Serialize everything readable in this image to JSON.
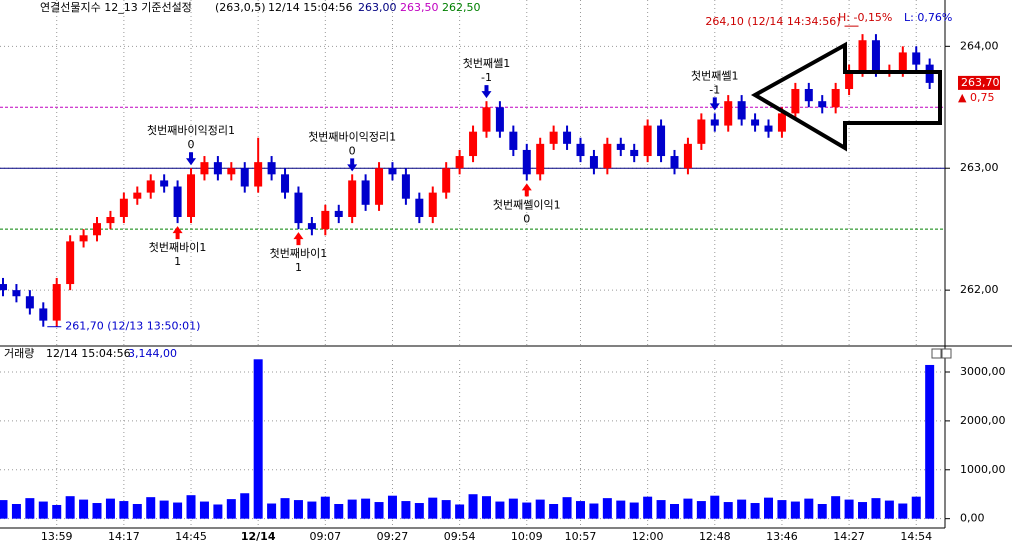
{
  "chart_data": [
    {
      "type": "candlestick",
      "title": "연결선물지수 12_13 기준선설정",
      "params": "(263,0,5)",
      "timestamp": "12/14 15:04:56",
      "ref_lines": [
        {
          "value": 263,
          "label": "263,00",
          "color": "#000080",
          "style": "solid"
        },
        {
          "value": 263.5,
          "label": "263,50",
          "color": "#c000c0",
          "style": "dashed"
        },
        {
          "value": 262.5,
          "label": "262,50",
          "color": "#008000",
          "style": "dashed"
        }
      ],
      "categories": [
        null,
        null,
        null,
        null,
        "13:59",
        null,
        null,
        null,
        null,
        "14:17",
        null,
        null,
        null,
        null,
        "14:45",
        null,
        null,
        null,
        null,
        "12/14",
        null,
        null,
        null,
        null,
        "09:07",
        null,
        null,
        null,
        null,
        "09:27",
        null,
        null,
        null,
        null,
        "09:54",
        null,
        null,
        null,
        null,
        "10:09",
        null,
        null,
        null,
        "10:57",
        null,
        null,
        null,
        null,
        "12:00",
        null,
        null,
        null,
        null,
        "12:48",
        null,
        null,
        null,
        null,
        "13:46",
        null,
        null,
        null,
        null,
        "14:27",
        null,
        null,
        null,
        null,
        "14:54",
        null
      ],
      "open": [
        262.05,
        262.0,
        261.95,
        261.85,
        261.75,
        262.05,
        262.4,
        262.45,
        262.55,
        262.6,
        262.75,
        262.8,
        262.9,
        262.85,
        262.6,
        262.95,
        263.05,
        262.95,
        263.0,
        262.85,
        263.05,
        262.95,
        262.8,
        262.55,
        262.5,
        262.65,
        262.6,
        262.9,
        262.7,
        263.0,
        262.95,
        262.75,
        262.6,
        262.8,
        263.0,
        263.1,
        263.3,
        263.5,
        263.3,
        263.15,
        262.95,
        263.2,
        263.3,
        263.2,
        263.1,
        263.0,
        263.2,
        263.15,
        263.1,
        263.35,
        263.1,
        263.0,
        263.2,
        263.4,
        263.35,
        263.55,
        263.4,
        263.35,
        263.3,
        263.45,
        263.65,
        263.55,
        263.5,
        263.65,
        263.8,
        264.05,
        263.8,
        263.8,
        263.95,
        263.85
      ],
      "high": [
        262.1,
        262.05,
        262.0,
        261.9,
        262.1,
        262.45,
        262.5,
        262.6,
        262.65,
        262.8,
        262.85,
        262.95,
        262.95,
        262.9,
        263.0,
        263.1,
        263.1,
        263.05,
        263.05,
        263.25,
        263.1,
        263.0,
        262.85,
        262.6,
        262.7,
        262.7,
        262.95,
        262.95,
        263.05,
        263.05,
        263.0,
        262.8,
        262.85,
        263.05,
        263.15,
        263.35,
        263.55,
        263.55,
        263.35,
        263.2,
        263.25,
        263.35,
        263.35,
        263.25,
        263.15,
        263.25,
        263.25,
        263.2,
        263.4,
        263.4,
        263.15,
        263.25,
        263.45,
        263.45,
        263.6,
        263.6,
        263.45,
        263.4,
        263.5,
        263.7,
        263.7,
        263.6,
        263.7,
        263.85,
        264.1,
        264.1,
        263.85,
        264.0,
        264.0,
        263.9
      ],
      "low": [
        261.95,
        261.9,
        261.8,
        261.7,
        261.7,
        262.0,
        262.35,
        262.4,
        262.5,
        262.55,
        262.7,
        262.75,
        262.8,
        262.55,
        262.55,
        262.9,
        262.9,
        262.9,
        262.8,
        262.8,
        262.9,
        262.75,
        262.5,
        262.45,
        262.45,
        262.55,
        262.55,
        262.65,
        262.65,
        262.9,
        262.7,
        262.55,
        262.55,
        262.75,
        262.95,
        263.05,
        263.25,
        263.25,
        263.1,
        262.9,
        262.9,
        263.15,
        263.15,
        263.05,
        262.95,
        262.95,
        263.1,
        263.05,
        263.05,
        263.05,
        262.95,
        262.95,
        263.15,
        263.3,
        263.3,
        263.35,
        263.3,
        263.25,
        263.25,
        263.4,
        263.5,
        263.45,
        263.45,
        263.6,
        263.75,
        263.75,
        263.75,
        263.75,
        263.8,
        263.65
      ],
      "close": [
        262.0,
        261.95,
        261.85,
        261.75,
        262.05,
        262.4,
        262.45,
        262.55,
        262.6,
        262.75,
        262.8,
        262.9,
        262.85,
        262.6,
        262.95,
        263.05,
        262.95,
        263.0,
        262.85,
        263.05,
        262.95,
        262.8,
        262.55,
        262.5,
        262.65,
        262.6,
        262.9,
        262.7,
        263.0,
        262.95,
        262.75,
        262.6,
        262.8,
        263.0,
        263.1,
        263.3,
        263.5,
        263.3,
        263.15,
        262.95,
        263.2,
        263.3,
        263.2,
        263.1,
        263.0,
        263.2,
        263.15,
        263.1,
        263.35,
        263.1,
        263.0,
        263.2,
        263.4,
        263.35,
        263.55,
        263.4,
        263.35,
        263.3,
        263.45,
        263.65,
        263.55,
        263.5,
        263.65,
        263.8,
        264.05,
        263.8,
        263.8,
        263.95,
        263.85,
        263.7
      ],
      "up_color": "#ff0000",
      "down_color": "#0000cc",
      "ylim": [
        261.55,
        264.38
      ],
      "yticks": [
        {
          "value": 262,
          "label": "262,00"
        },
        {
          "value": 263,
          "label": "263,00"
        },
        {
          "value": 264,
          "label": "264,00"
        }
      ],
      "grid": true,
      "last_label": "263,70",
      "change_label": "0,75",
      "stats": [
        "H: -0,15%",
        "L: 0,76%"
      ],
      "extremes": [
        {
          "index": 3,
          "side": "low",
          "text": "261,70 (12/13 13:50:01)"
        },
        {
          "index": 64,
          "side": "high",
          "text": "264,10 (12/14 14:34:56)"
        }
      ],
      "signals": [
        {
          "index": 13,
          "side": "buy",
          "label": "첫번째바이1",
          "qty": "1"
        },
        {
          "index": 14,
          "side": "sell",
          "label": "첫번째바이익정리1",
          "qty": "0"
        },
        {
          "index": 22,
          "side": "buy",
          "label": "첫번째바이1",
          "qty": "1"
        },
        {
          "index": 26,
          "side": "sell",
          "label": "첫번째바이익정리1",
          "qty": "0"
        },
        {
          "index": 36,
          "side": "sell",
          "label": "첫번째쎌1",
          "qty": "-1"
        },
        {
          "index": 39,
          "side": "buy",
          "label": "첫번째쎌이익1",
          "qty": "0"
        },
        {
          "index": 53,
          "side": "sell",
          "label": "첫번째쎌1",
          "qty": "-1"
        }
      ]
    },
    {
      "type": "bar",
      "title": "거래량",
      "timestamp": "12/14 15:04:56",
      "last_label": "3,144,00",
      "color": "#0000ff",
      "values": [
        380,
        300,
        420,
        350,
        280,
        460,
        390,
        320,
        410,
        360,
        300,
        440,
        370,
        330,
        480,
        350,
        290,
        400,
        520,
        3260,
        310,
        420,
        380,
        350,
        450,
        300,
        390,
        410,
        340,
        470,
        360,
        320,
        430,
        380,
        290,
        500,
        460,
        350,
        410,
        330,
        390,
        300,
        440,
        360,
        310,
        420,
        370,
        330,
        450,
        380,
        300,
        410,
        360,
        470,
        340,
        390,
        320,
        430,
        380,
        350,
        410,
        300,
        460,
        390,
        340,
        420,
        370,
        310,
        450,
        3144
      ],
      "ylim": [
        -150,
        3450
      ],
      "yticks": [
        {
          "value": 0,
          "label": "0,00"
        },
        {
          "value": 1000,
          "label": "1000,00"
        },
        {
          "value": 2000,
          "label": "2000,00"
        },
        {
          "value": 3000,
          "label": "3000,00"
        }
      ],
      "grid": true
    }
  ]
}
